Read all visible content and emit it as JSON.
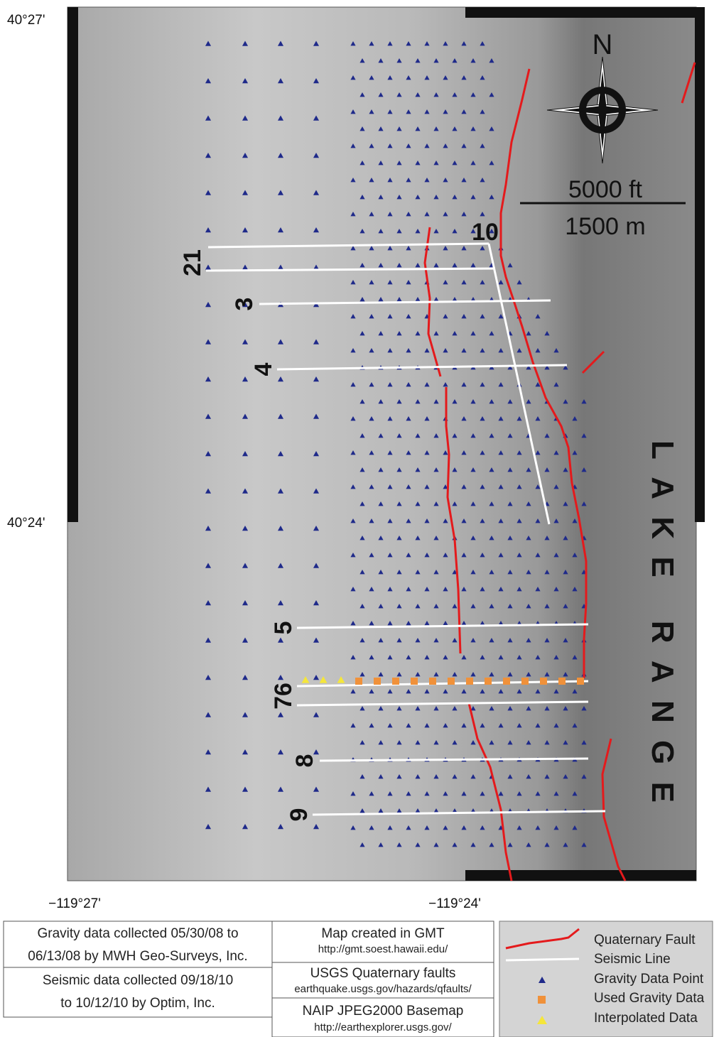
{
  "map": {
    "lat_labels": [
      "40°27'",
      "40°24'"
    ],
    "lon_labels": [
      "−119°27'",
      "−119°24'"
    ],
    "north": "N",
    "scale": {
      "feet": "5000 ft",
      "meters": "1500 m"
    },
    "range_label": "LAKE RANGE",
    "seismic_lines": [
      "10",
      "21",
      "3",
      "4",
      "5",
      "76",
      "8",
      "9"
    ]
  },
  "credits": {
    "data_box": [
      "Gravity data collected 05/30/08 to",
      "06/13/08 by MWH Geo-Surveys, Inc.",
      "Seismic data collected 09/18/10",
      "to 10/12/10 by Optim, Inc."
    ],
    "sources": [
      {
        "title": "Map created in GMT",
        "url": "http://gmt.soest.hawaii.edu/"
      },
      {
        "title": "USGS Quaternary faults",
        "url": "earthquake.usgs.gov/hazards/qfaults/"
      },
      {
        "title": "NAIP JPEG2000 Basemap",
        "url": "http://earthexplorer.usgs.gov/"
      }
    ]
  },
  "legend": [
    "Quaternary Fault",
    "Seismic Line",
    "Gravity Data Point",
    "Used Gravity Data",
    "Interpolated Data"
  ]
}
